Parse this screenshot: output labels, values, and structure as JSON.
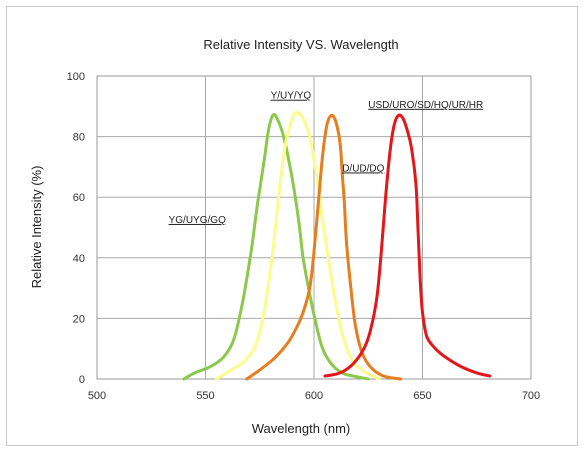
{
  "chart_data": {
    "type": "line",
    "title": "Relative Intensity VS. Wavelength",
    "xlabel": "Wavelength (nm)",
    "ylabel": "Relative Intensity (%)",
    "xlim": [
      500,
      700
    ],
    "ylim": [
      0,
      100
    ],
    "xticks": [
      500,
      550,
      600,
      650,
      700
    ],
    "yticks": [
      0,
      20,
      40,
      60,
      80,
      100
    ],
    "grid": true,
    "series": [
      {
        "name": "YG/UYG/GQ",
        "color": "#8cc84b",
        "points": [
          [
            540,
            0
          ],
          [
            545,
            2
          ],
          [
            552,
            4
          ],
          [
            558,
            7
          ],
          [
            563,
            13
          ],
          [
            567,
            25
          ],
          [
            571,
            42
          ],
          [
            574,
            58
          ],
          [
            577,
            72
          ],
          [
            579,
            82
          ],
          [
            581,
            87
          ],
          [
            583,
            86
          ],
          [
            586,
            80
          ],
          [
            590,
            66
          ],
          [
            593,
            52
          ],
          [
            595,
            40
          ],
          [
            598,
            28
          ],
          [
            601,
            18
          ],
          [
            604,
            10
          ],
          [
            608,
            5
          ],
          [
            613,
            2
          ],
          [
            618,
            1
          ],
          [
            625,
            0
          ]
        ],
        "label": {
          "text": "YG/UYG/GQ",
          "x": 533,
          "y": 51.5
        }
      },
      {
        "name": "Y/UY/YQ",
        "color": "#fcfc8c",
        "points": [
          [
            555,
            0
          ],
          [
            562,
            3
          ],
          [
            568,
            6
          ],
          [
            573,
            11
          ],
          [
            577,
            22
          ],
          [
            581,
            42
          ],
          [
            584,
            62
          ],
          [
            587,
            78
          ],
          [
            590,
            86
          ],
          [
            592,
            88
          ],
          [
            595,
            86
          ],
          [
            598,
            80
          ],
          [
            601,
            68
          ],
          [
            604,
            52
          ],
          [
            607,
            38
          ],
          [
            610,
            25
          ],
          [
            613,
            15
          ],
          [
            617,
            7
          ],
          [
            622,
            3
          ],
          [
            630,
            0
          ]
        ],
        "label": {
          "text": "Y/UY/YQ",
          "x": 580,
          "y": 92.5
        }
      },
      {
        "name": "D/UD/DQ",
        "color": "#e57e1e",
        "points": [
          [
            569,
            0
          ],
          [
            575,
            3
          ],
          [
            582,
            7
          ],
          [
            588,
            12
          ],
          [
            592,
            17
          ],
          [
            595,
            22
          ],
          [
            598,
            30
          ],
          [
            600,
            42
          ],
          [
            602,
            58
          ],
          [
            604,
            74
          ],
          [
            606,
            84
          ],
          [
            608,
            87
          ],
          [
            610,
            85
          ],
          [
            612,
            78
          ],
          [
            613,
            68
          ],
          [
            614,
            58
          ],
          [
            615,
            45
          ],
          [
            617,
            30
          ],
          [
            619,
            18
          ],
          [
            622,
            9
          ],
          [
            626,
            4
          ],
          [
            632,
            1
          ],
          [
            640,
            0
          ]
        ],
        "label": {
          "text": "D/UD/DQ",
          "x": 613,
          "y": 68.5
        }
      },
      {
        "name": "USD/URO/SD/HQ/UR/HR",
        "color": "#e3171b",
        "points": [
          [
            605,
            1
          ],
          [
            612,
            2
          ],
          [
            618,
            5
          ],
          [
            623,
            10
          ],
          [
            626,
            16
          ],
          [
            629,
            27
          ],
          [
            631,
            42
          ],
          [
            633,
            60
          ],
          [
            635,
            75
          ],
          [
            637,
            84
          ],
          [
            639,
            87
          ],
          [
            641,
            86
          ],
          [
            643,
            82
          ],
          [
            645,
            76
          ],
          [
            647,
            64
          ],
          [
            648,
            48
          ],
          [
            649,
            32
          ],
          [
            650,
            22
          ],
          [
            652,
            14
          ],
          [
            656,
            10
          ],
          [
            661,
            7
          ],
          [
            668,
            4
          ],
          [
            675,
            2
          ],
          [
            681,
            1
          ]
        ],
        "label": {
          "text": "USD/URO/SD/HQ/UR/HR",
          "x": 625,
          "y": 89.5
        }
      }
    ]
  }
}
